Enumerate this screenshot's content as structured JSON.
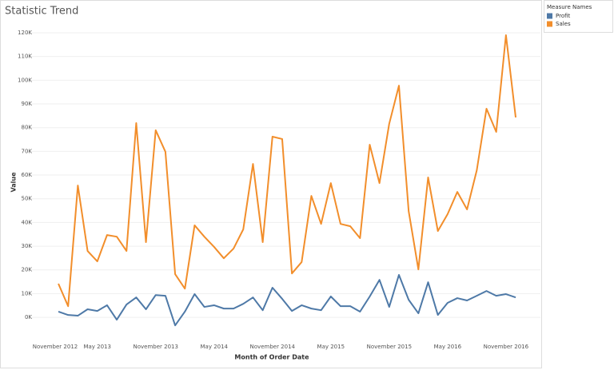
{
  "chart_data": {
    "type": "line",
    "title": "Statistic Trend",
    "x_label": "Month of Order Date",
    "y_label": "Value",
    "legend_title": "Measure Names",
    "legend": "right",
    "x": [
      "2013-01",
      "2013-02",
      "2013-03",
      "2013-04",
      "2013-05",
      "2013-06",
      "2013-07",
      "2013-08",
      "2013-09",
      "2013-10",
      "2013-11",
      "2013-12",
      "2014-01",
      "2014-02",
      "2014-03",
      "2014-04",
      "2014-05",
      "2014-06",
      "2014-07",
      "2014-08",
      "2014-09",
      "2014-10",
      "2014-11",
      "2014-12",
      "2015-01",
      "2015-02",
      "2015-03",
      "2015-04",
      "2015-05",
      "2015-06",
      "2015-07",
      "2015-08",
      "2015-09",
      "2015-10",
      "2015-11",
      "2015-12",
      "2016-01",
      "2016-02",
      "2016-03",
      "2016-04",
      "2016-05",
      "2016-06",
      "2016-07",
      "2016-08",
      "2016-09",
      "2016-10",
      "2016-11",
      "2016-12"
    ],
    "series": [
      {
        "name": "Profit",
        "color": "#4e79a7",
        "values": [
          2400,
          1000,
          700,
          3400,
          2700,
          5100,
          -1000,
          5400,
          8400,
          3400,
          9400,
          9100,
          -3400,
          2400,
          9800,
          4400,
          5100,
          3700,
          3700,
          5700,
          8400,
          3000,
          12500,
          7800,
          2700,
          5100,
          3700,
          3000,
          8800,
          4700,
          4700,
          2400,
          8800,
          15800,
          4400,
          17900,
          7400,
          1700,
          14800,
          1000,
          6100,
          8100,
          7100,
          9100,
          11100,
          9100,
          9800,
          8400
        ]
      },
      {
        "name": "Sales",
        "color": "#f28e2b",
        "values": [
          14200,
          4700,
          55600,
          28000,
          23600,
          34700,
          34000,
          28000,
          81900,
          31700,
          78900,
          69800,
          18200,
          12100,
          38800,
          34000,
          29700,
          24900,
          29000,
          37100,
          64700,
          31700,
          76200,
          75200,
          18500,
          23300,
          51200,
          39400,
          56600,
          39400,
          38400,
          33400,
          72800,
          56600,
          81600,
          97700,
          44800,
          20200,
          59000,
          36400,
          43500,
          52900,
          45500,
          62000,
          88000,
          78200,
          119000,
          84300
        ]
      }
    ],
    "xlim": [
      "2012-11",
      "2017-01"
    ],
    "xticks": [
      {
        "value": "2012-11",
        "label": "November 2012"
      },
      {
        "value": "2013-05",
        "label": "May 2013"
      },
      {
        "value": "2013-11",
        "label": "November 2013"
      },
      {
        "value": "2014-05",
        "label": "May 2014"
      },
      {
        "value": "2014-11",
        "label": "November 2014"
      },
      {
        "value": "2015-05",
        "label": "May 2015"
      },
      {
        "value": "2015-11",
        "label": "November 2015"
      },
      {
        "value": "2016-05",
        "label": "May 2016"
      },
      {
        "value": "2016-11",
        "label": "November 2016"
      }
    ],
    "ylim": [
      -9400,
      123700
    ],
    "yticks": [
      {
        "value": 0,
        "label": "0K"
      },
      {
        "value": 10000,
        "label": "10K"
      },
      {
        "value": 20000,
        "label": "20K"
      },
      {
        "value": 30000,
        "label": "30K"
      },
      {
        "value": 40000,
        "label": "40K"
      },
      {
        "value": 50000,
        "label": "50K"
      },
      {
        "value": 60000,
        "label": "60K"
      },
      {
        "value": 70000,
        "label": "70K"
      },
      {
        "value": 80000,
        "label": "80K"
      },
      {
        "value": 90000,
        "label": "90K"
      },
      {
        "value": 100000,
        "label": "100K"
      },
      {
        "value": 110000,
        "label": "110K"
      },
      {
        "value": 120000,
        "label": "120K"
      }
    ],
    "grid": true
  }
}
